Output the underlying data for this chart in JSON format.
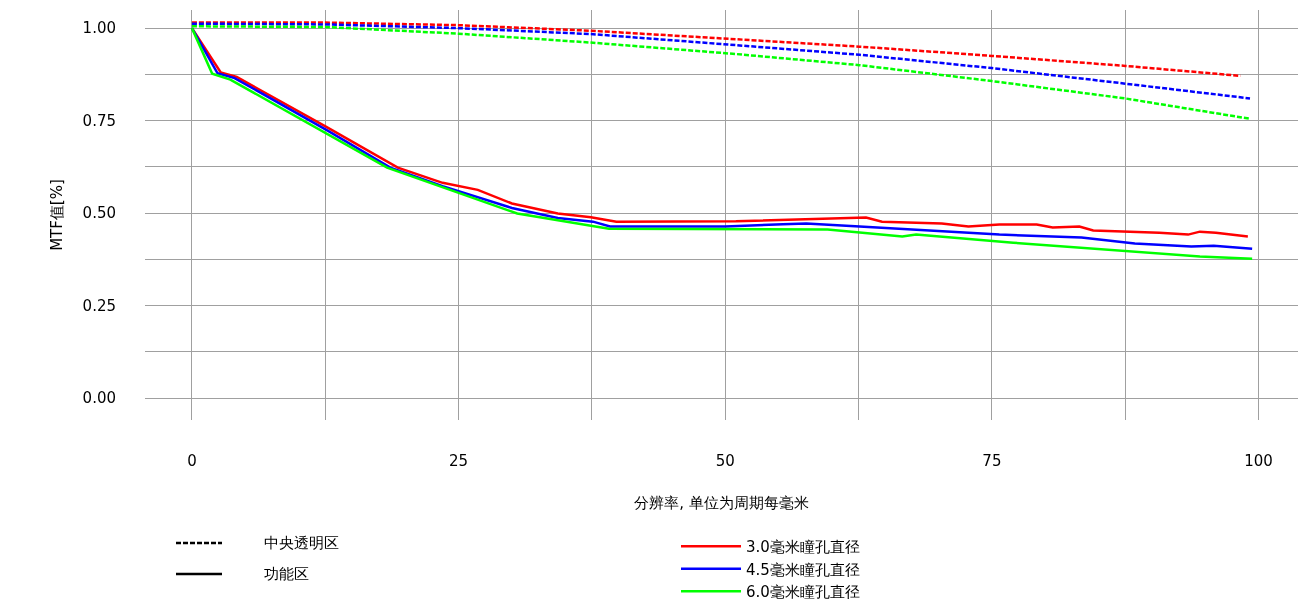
{
  "chart_data": {
    "type": "line",
    "xlabel": "分辨率, 单位为周期每毫米",
    "ylabel": "MTF值[%]",
    "xlim": [
      -4.4,
      103.7
    ],
    "ylim": [
      -0.059,
      1.049
    ],
    "xticks": [
      0,
      {
        "value": 12.5,
        "label": null
      },
      25,
      {
        "value": 37.5,
        "label": null
      },
      50,
      {
        "value": 62.5,
        "label": null
      },
      75,
      {
        "value": 87.5,
        "label": null
      },
      100
    ],
    "yticks": [
      {
        "value": 0,
        "label": "0.00"
      },
      {
        "value": 0.125,
        "label": null
      },
      {
        "value": 0.25,
        "label": "0.25"
      },
      {
        "value": 0.375,
        "label": null
      },
      {
        "value": 0.5,
        "label": "0.50"
      },
      {
        "value": 0.625,
        "label": null
      },
      {
        "value": 0.75,
        "label": "0.75"
      },
      {
        "value": 0.875,
        "label": null
      },
      {
        "value": 1.0,
        "label": "1.00"
      }
    ],
    "grid": true,
    "legend": "bottom",
    "annotations": [
      "中央透明区",
      "功能区"
    ],
    "series": [
      {
        "color": "#ff0000",
        "line_style": "dashed",
        "x": [
          0,
          12.5,
          25,
          37.4,
          51,
          62.6,
          75,
          87.5,
          98.3
        ],
        "values": [
          1.015,
          1.015,
          1.008,
          0.993,
          0.97,
          0.95,
          0.925,
          0.898,
          0.871
        ]
      },
      {
        "color": "#0000ff",
        "line_style": "dashed",
        "x": [
          0,
          12.5,
          25,
          37.4,
          51,
          62.6,
          75,
          87.5,
          99.2
        ],
        "values": [
          1.012,
          1.01,
          1.0,
          0.984,
          0.954,
          0.928,
          0.892,
          0.85,
          0.81
        ]
      },
      {
        "color": "#00ff00",
        "line_style": "dashed",
        "x": [
          0,
          12.5,
          25,
          37.4,
          51,
          62.6,
          75,
          87.5,
          99.2
        ],
        "values": [
          1.005,
          1.003,
          0.985,
          0.961,
          0.93,
          0.9,
          0.857,
          0.81,
          0.755
        ]
      },
      {
        "name": "3.0毫米瞳孔直径",
        "color": "#ff0000",
        "line_style": "solid",
        "x": [
          0,
          2.7,
          4.2,
          12.6,
          19.3,
          23.5,
          26.8,
          30,
          34.3,
          37.4,
          39.8,
          51,
          63.2,
          64.7,
          70.3,
          72.8,
          75.7,
          79.2,
          80.7,
          83.2,
          84.5,
          90.7,
          93.4,
          94.5,
          96,
          99
        ],
        "values": [
          1.0,
          0.88,
          0.868,
          0.733,
          0.623,
          0.582,
          0.563,
          0.526,
          0.499,
          0.489,
          0.477,
          0.478,
          0.488,
          0.477,
          0.472,
          0.464,
          0.469,
          0.469,
          0.461,
          0.464,
          0.453,
          0.447,
          0.442,
          0.45,
          0.447,
          0.437
        ]
      },
      {
        "name": "4.5毫米瞳孔直径",
        "color": "#0000ff",
        "line_style": "solid",
        "x": [
          0,
          2.4,
          4.0,
          12.6,
          18.6,
          23.5,
          30,
          34.3,
          37.6,
          39.2,
          50,
          55.4,
          57.6,
          62.6,
          75.7,
          83.4,
          88.4,
          93.7,
          95.8,
          99.4
        ],
        "values": [
          1.0,
          0.878,
          0.865,
          0.725,
          0.623,
          0.573,
          0.514,
          0.487,
          0.477,
          0.464,
          0.464,
          0.47,
          0.472,
          0.464,
          0.442,
          0.434,
          0.418,
          0.41,
          0.412,
          0.404
        ]
      },
      {
        "name": "6.0毫米瞳孔直径",
        "color": "#00ff00",
        "line_style": "solid",
        "x": [
          0,
          1.9,
          3.6,
          18.3,
          30.5,
          39.1,
          59.6,
          66.6,
          67.9,
          77,
          94.5,
          99.4
        ],
        "values": [
          1.0,
          0.877,
          0.861,
          0.623,
          0.499,
          0.458,
          0.456,
          0.437,
          0.442,
          0.42,
          0.383,
          0.377
        ]
      }
    ]
  }
}
